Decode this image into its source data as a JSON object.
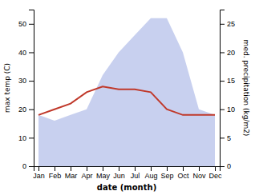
{
  "chart_data": {
    "type": "line",
    "categories": [
      "Jan",
      "Feb",
      "Mar",
      "Apr",
      "May",
      "Jun",
      "Jul",
      "Aug",
      "Sep",
      "Oct",
      "Nov",
      "Dec"
    ],
    "xlabel": "date (month)",
    "ylabel": "max temp (C)",
    "y2label": "med. precipitation (kg/m2)",
    "ylim": [
      0,
      55
    ],
    "yticks": [
      0,
      10,
      20,
      30,
      40,
      50
    ],
    "y2lim": [
      0,
      27.5
    ],
    "y2ticks": [
      0,
      5,
      10,
      15,
      20,
      25
    ],
    "grid": false,
    "series": [
      {
        "type": "area",
        "axis": "y2",
        "color": "#b0bce8",
        "values": [
          9,
          8,
          9,
          10,
          16,
          20,
          23,
          26,
          26,
          20,
          10,
          9
        ]
      },
      {
        "type": "line",
        "color": "#c0392b",
        "values": [
          18,
          20,
          22,
          26,
          28,
          27,
          27,
          26,
          20,
          18,
          18,
          18
        ]
      }
    ]
  }
}
